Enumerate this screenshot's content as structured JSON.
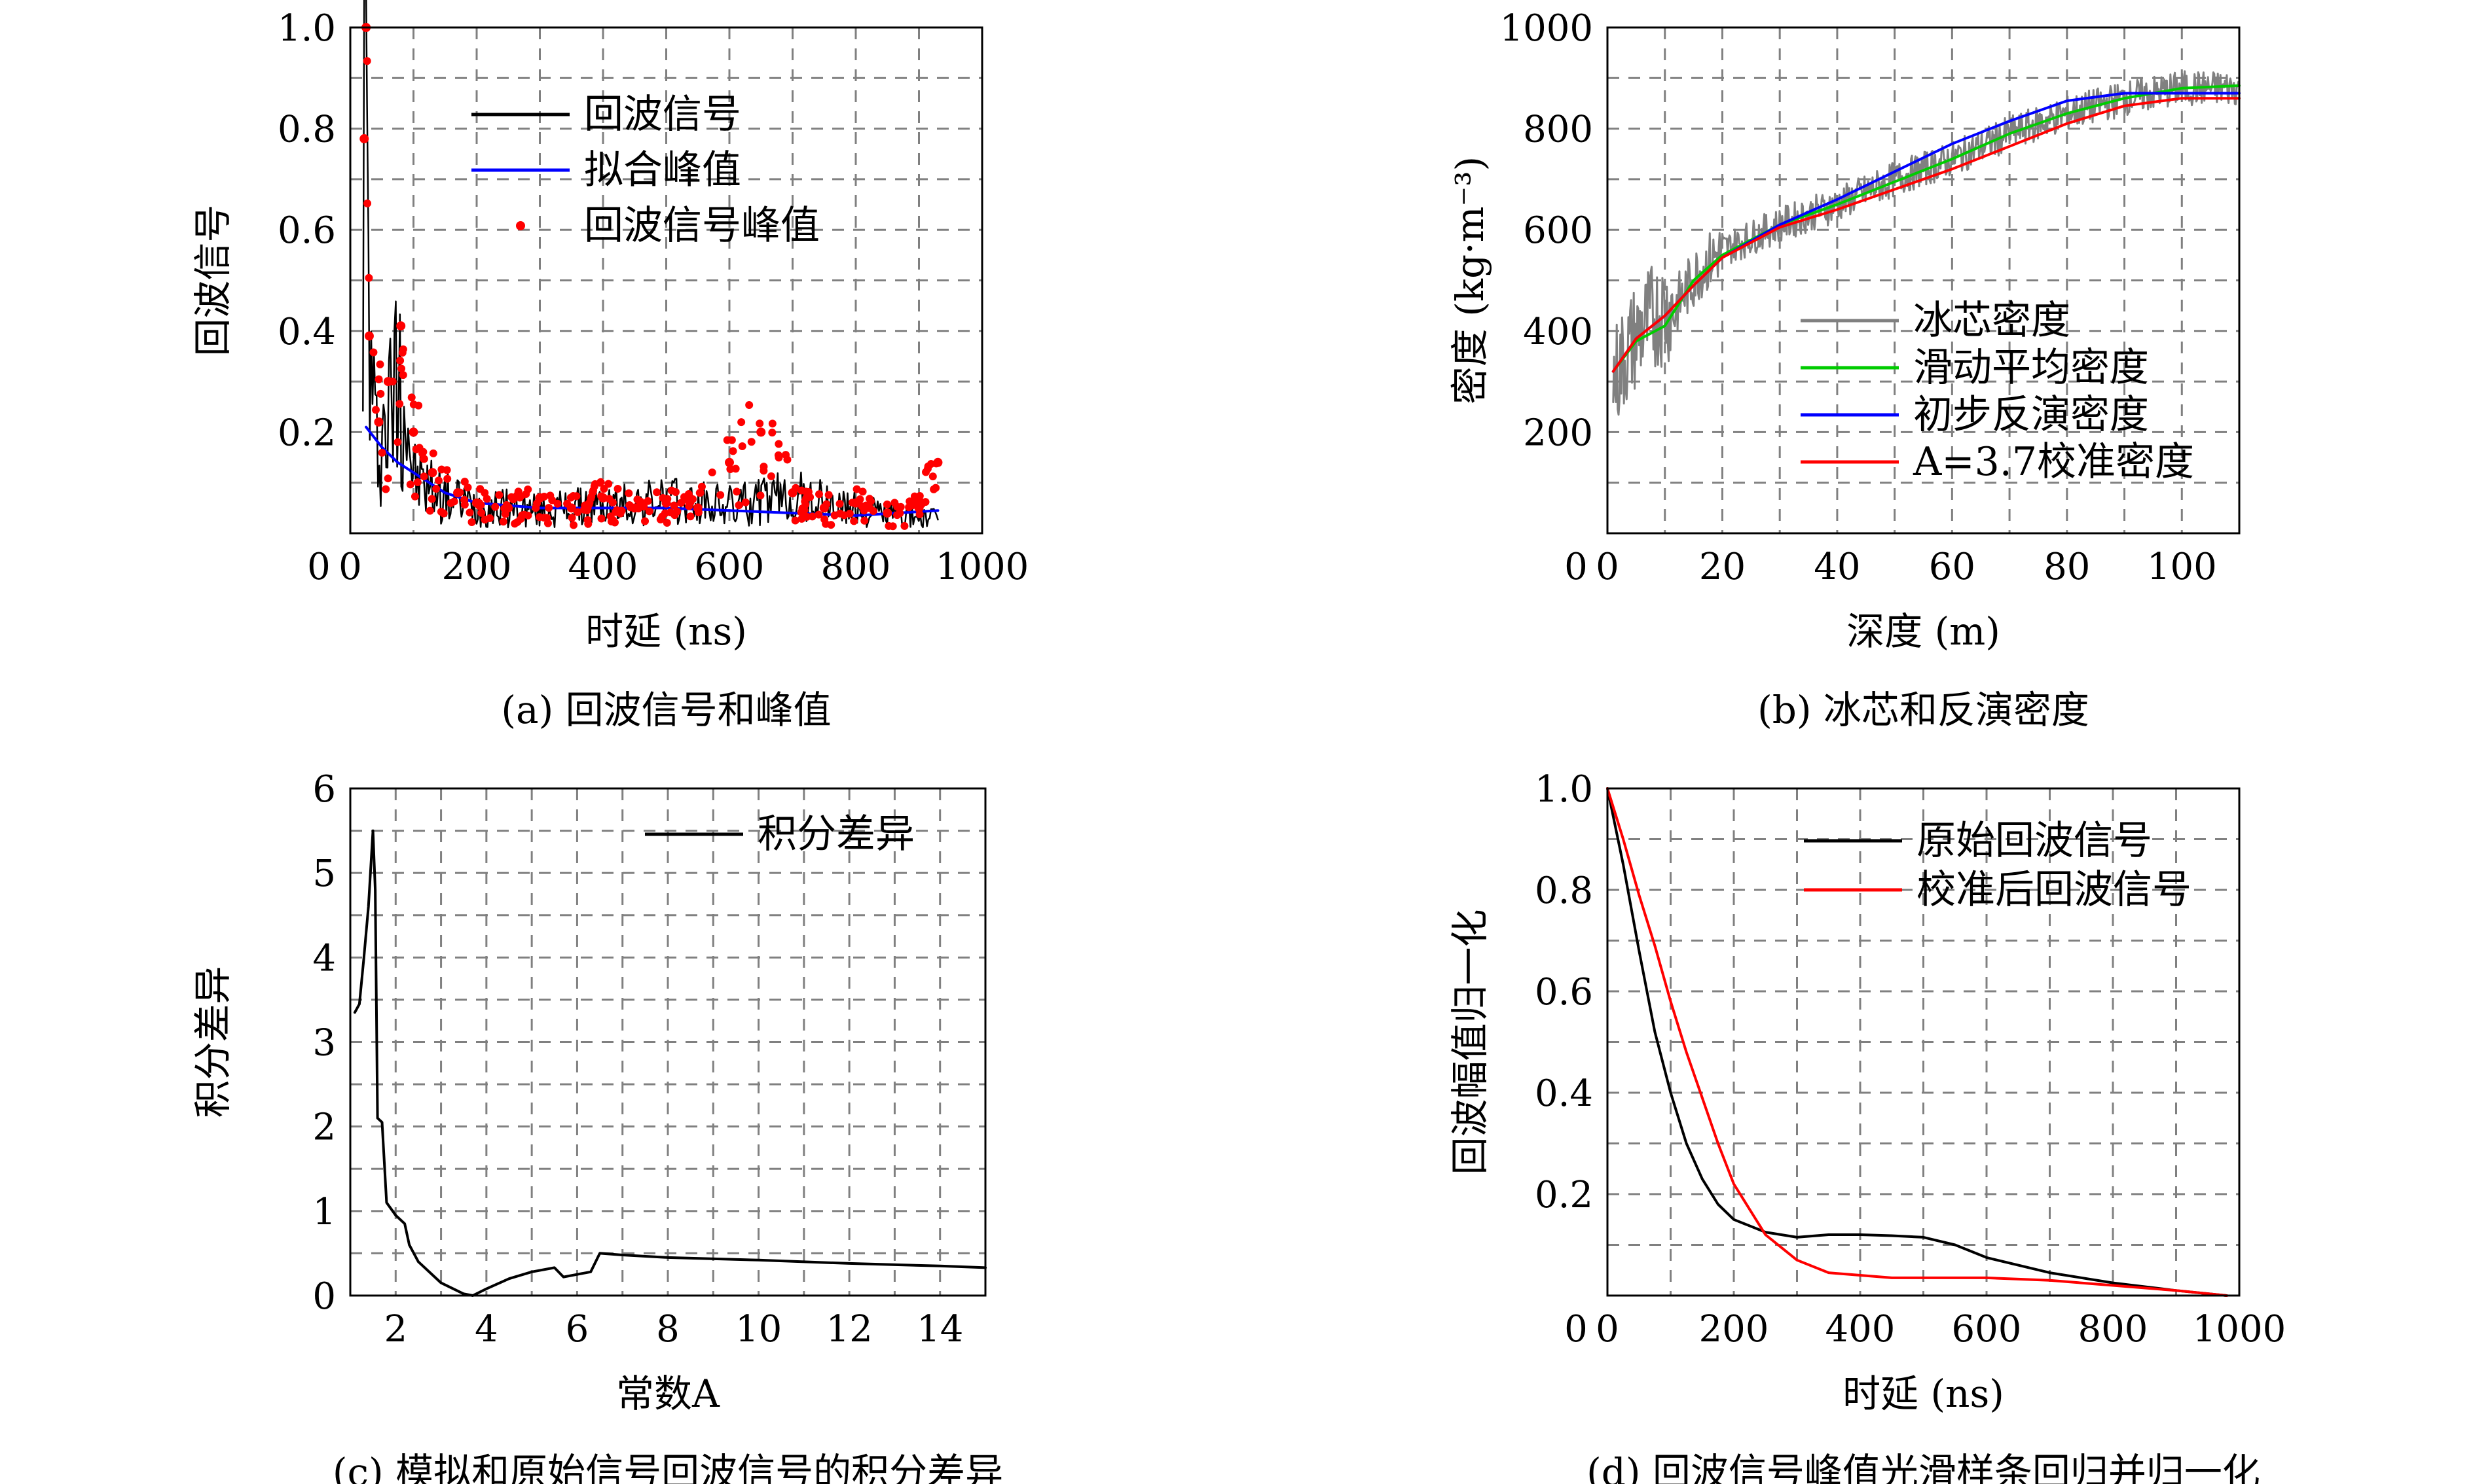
{
  "chart_data": [
    {
      "id": "a",
      "type": "line",
      "caption": "(a) 回波信号和峰值",
      "xlabel": "时延 (ns)",
      "ylabel": "回波信号",
      "xlim": [
        0,
        1000
      ],
      "ylim": [
        0,
        1.0
      ],
      "xticks": [
        0,
        200,
        400,
        600,
        800,
        1000
      ],
      "yticks": [
        0.2,
        0.4,
        0.6,
        0.8,
        1.0
      ],
      "ytick_labels": [
        "0.2",
        "0.4",
        "0.6",
        "0.8",
        "1.0"
      ],
      "origin_label": "0",
      "grid": true,
      "legend_position": "top-center",
      "series": [
        {
          "name": "回波信号",
          "color": "#000000",
          "style": "noisy-line",
          "x": [
            20,
            25,
            30,
            40,
            60,
            80,
            100,
            150,
            200,
            300,
            400,
            500,
            600,
            700,
            800,
            930
          ],
          "y": [
            0.78,
            1.0,
            0.4,
            0.2,
            0.25,
            0.4,
            0.12,
            0.08,
            0.06,
            0.05,
            0.06,
            0.07,
            0.06,
            0.08,
            0.05,
            0.03
          ]
        },
        {
          "name": "拟合峰值",
          "color": "#0000ff",
          "style": "line",
          "x": [
            25,
            50,
            75,
            100,
            150,
            200,
            250,
            300,
            400,
            500,
            600,
            700,
            800,
            930
          ],
          "y": [
            0.21,
            0.17,
            0.14,
            0.12,
            0.08,
            0.06,
            0.055,
            0.05,
            0.05,
            0.05,
            0.045,
            0.04,
            0.035,
            0.045
          ]
        },
        {
          "name": "回波信号峰值",
          "color": "#ff0000",
          "style": "markers",
          "x": [
            22,
            25,
            30,
            45,
            60,
            80,
            100,
            130,
            170,
            200,
            250,
            300,
            350,
            400,
            450,
            500,
            550,
            600,
            650,
            700,
            750,
            800,
            850,
            900,
            930
          ],
          "y": [
            0.78,
            1.0,
            0.39,
            0.22,
            0.3,
            0.41,
            0.2,
            0.12,
            0.08,
            0.06,
            0.05,
            0.07,
            0.05,
            0.07,
            0.05,
            0.06,
            0.05,
            0.14,
            0.2,
            0.08,
            0.05,
            0.06,
            0.04,
            0.05,
            0.14
          ]
        }
      ]
    },
    {
      "id": "b",
      "type": "line",
      "caption": "(b) 冰芯和反演密度",
      "xlabel": "深度 (m)",
      "ylabel": "密度 (kg·m⁻³)",
      "xlim": [
        0,
        110
      ],
      "ylim": [
        0,
        1000
      ],
      "xticks": [
        0,
        20,
        40,
        60,
        80,
        100
      ],
      "yticks": [
        200,
        400,
        600,
        800,
        1000
      ],
      "ytick_labels": [
        "200",
        "400",
        "600",
        "800",
        "1000"
      ],
      "origin_label": "0",
      "grid": true,
      "legend_position": "bottom-right",
      "series": [
        {
          "name": "冰芯密度",
          "color": "#808080",
          "style": "noisy-band",
          "x": [
            1,
            3,
            5,
            8,
            12,
            16,
            20,
            30,
            40,
            50,
            60,
            70,
            80,
            90,
            100,
            110
          ],
          "y": [
            300,
            350,
            390,
            430,
            450,
            520,
            560,
            610,
            650,
            700,
            740,
            790,
            830,
            860,
            880,
            880
          ]
        },
        {
          "name": "滑动平均密度",
          "color": "#00cc00",
          "style": "line",
          "x": [
            1,
            5,
            10,
            15,
            20,
            30,
            40,
            50,
            60,
            70,
            80,
            90,
            100,
            110
          ],
          "y": [
            320,
            380,
            410,
            500,
            550,
            610,
            650,
            695,
            740,
            790,
            830,
            860,
            880,
            885
          ]
        },
        {
          "name": "初步反演密度",
          "color": "#0000ff",
          "style": "line",
          "x": [
            1,
            5,
            10,
            15,
            20,
            30,
            40,
            50,
            60,
            70,
            80,
            90,
            100,
            110
          ],
          "y": [
            320,
            385,
            430,
            490,
            545,
            610,
            660,
            715,
            770,
            815,
            855,
            870,
            870,
            870
          ]
        },
        {
          "name": "A=3.7校准密度",
          "color": "#ff0000",
          "style": "line",
          "x": [
            1,
            5,
            10,
            15,
            20,
            30,
            40,
            50,
            60,
            70,
            80,
            90,
            100,
            110
          ],
          "y": [
            320,
            385,
            430,
            490,
            545,
            605,
            640,
            680,
            720,
            765,
            810,
            845,
            860,
            860
          ]
        }
      ]
    },
    {
      "id": "c",
      "type": "line",
      "caption": "(c) 模拟和原始信号回波信号的积分差异",
      "xlabel": "常数A",
      "ylabel": "积分差异",
      "xlim": [
        1,
        15
      ],
      "ylim": [
        0,
        6
      ],
      "xticks": [
        2,
        4,
        6,
        8,
        10,
        12,
        14
      ],
      "yticks": [
        0,
        1,
        2,
        3,
        4,
        5,
        6
      ],
      "ytick_labels": [
        "0",
        "1",
        "2",
        "3",
        "4",
        "5",
        "6"
      ],
      "grid": true,
      "legend_position": "top-right",
      "series": [
        {
          "name": "积分差异",
          "color": "#000000",
          "style": "line",
          "x": [
            1.1,
            1.2,
            1.3,
            1.4,
            1.5,
            1.55,
            1.6,
            1.7,
            1.8,
            2.0,
            2.2,
            2.3,
            2.5,
            3.0,
            3.5,
            3.7,
            4.0,
            4.5,
            5.0,
            5.5,
            5.7,
            6.0,
            6.3,
            6.5,
            7.0,
            8.0,
            10.0,
            12.0,
            14.0,
            15.0
          ],
          "y": [
            3.35,
            3.45,
            4.0,
            4.6,
            5.5,
            4.8,
            2.1,
            2.05,
            1.1,
            0.95,
            0.85,
            0.6,
            0.4,
            0.15,
            0.02,
            0.0,
            0.08,
            0.2,
            0.28,
            0.33,
            0.22,
            0.25,
            0.28,
            0.5,
            0.48,
            0.45,
            0.42,
            0.38,
            0.35,
            0.33
          ]
        }
      ]
    },
    {
      "id": "d",
      "type": "line",
      "caption": "(d) 回波信号峰值光滑样条回归并归一化",
      "xlabel": "时延 (ns)",
      "ylabel": "回波幅值归一化",
      "xlim": [
        0,
        1000
      ],
      "ylim": [
        0,
        1.0
      ],
      "xticks": [
        0,
        200,
        400,
        600,
        800,
        1000
      ],
      "yticks": [
        0.2,
        0.4,
        0.6,
        0.8,
        1.0
      ],
      "ytick_labels": [
        "0.2",
        "0.4",
        "0.6",
        "0.8",
        "1.0"
      ],
      "origin_label": "0",
      "grid": true,
      "legend_position": "top-right",
      "series": [
        {
          "name": "原始回波信号",
          "color": "#000000",
          "style": "line",
          "x": [
            0,
            25,
            50,
            75,
            100,
            125,
            150,
            175,
            200,
            250,
            300,
            350,
            400,
            450,
            500,
            550,
            600,
            700,
            800,
            900,
            980
          ],
          "y": [
            1.0,
            0.85,
            0.68,
            0.52,
            0.4,
            0.3,
            0.23,
            0.18,
            0.15,
            0.125,
            0.115,
            0.12,
            0.12,
            0.118,
            0.115,
            0.1,
            0.075,
            0.045,
            0.025,
            0.01,
            0.0
          ]
        },
        {
          "name": "校准后回波信号",
          "color": "#ff0000",
          "style": "line",
          "x": [
            0,
            25,
            50,
            75,
            100,
            125,
            150,
            175,
            200,
            250,
            300,
            350,
            400,
            450,
            500,
            600,
            700,
            800,
            900,
            980
          ],
          "y": [
            1.0,
            0.9,
            0.79,
            0.69,
            0.58,
            0.48,
            0.39,
            0.3,
            0.22,
            0.12,
            0.07,
            0.045,
            0.04,
            0.035,
            0.035,
            0.035,
            0.03,
            0.02,
            0.01,
            0.0
          ]
        }
      ]
    }
  ]
}
